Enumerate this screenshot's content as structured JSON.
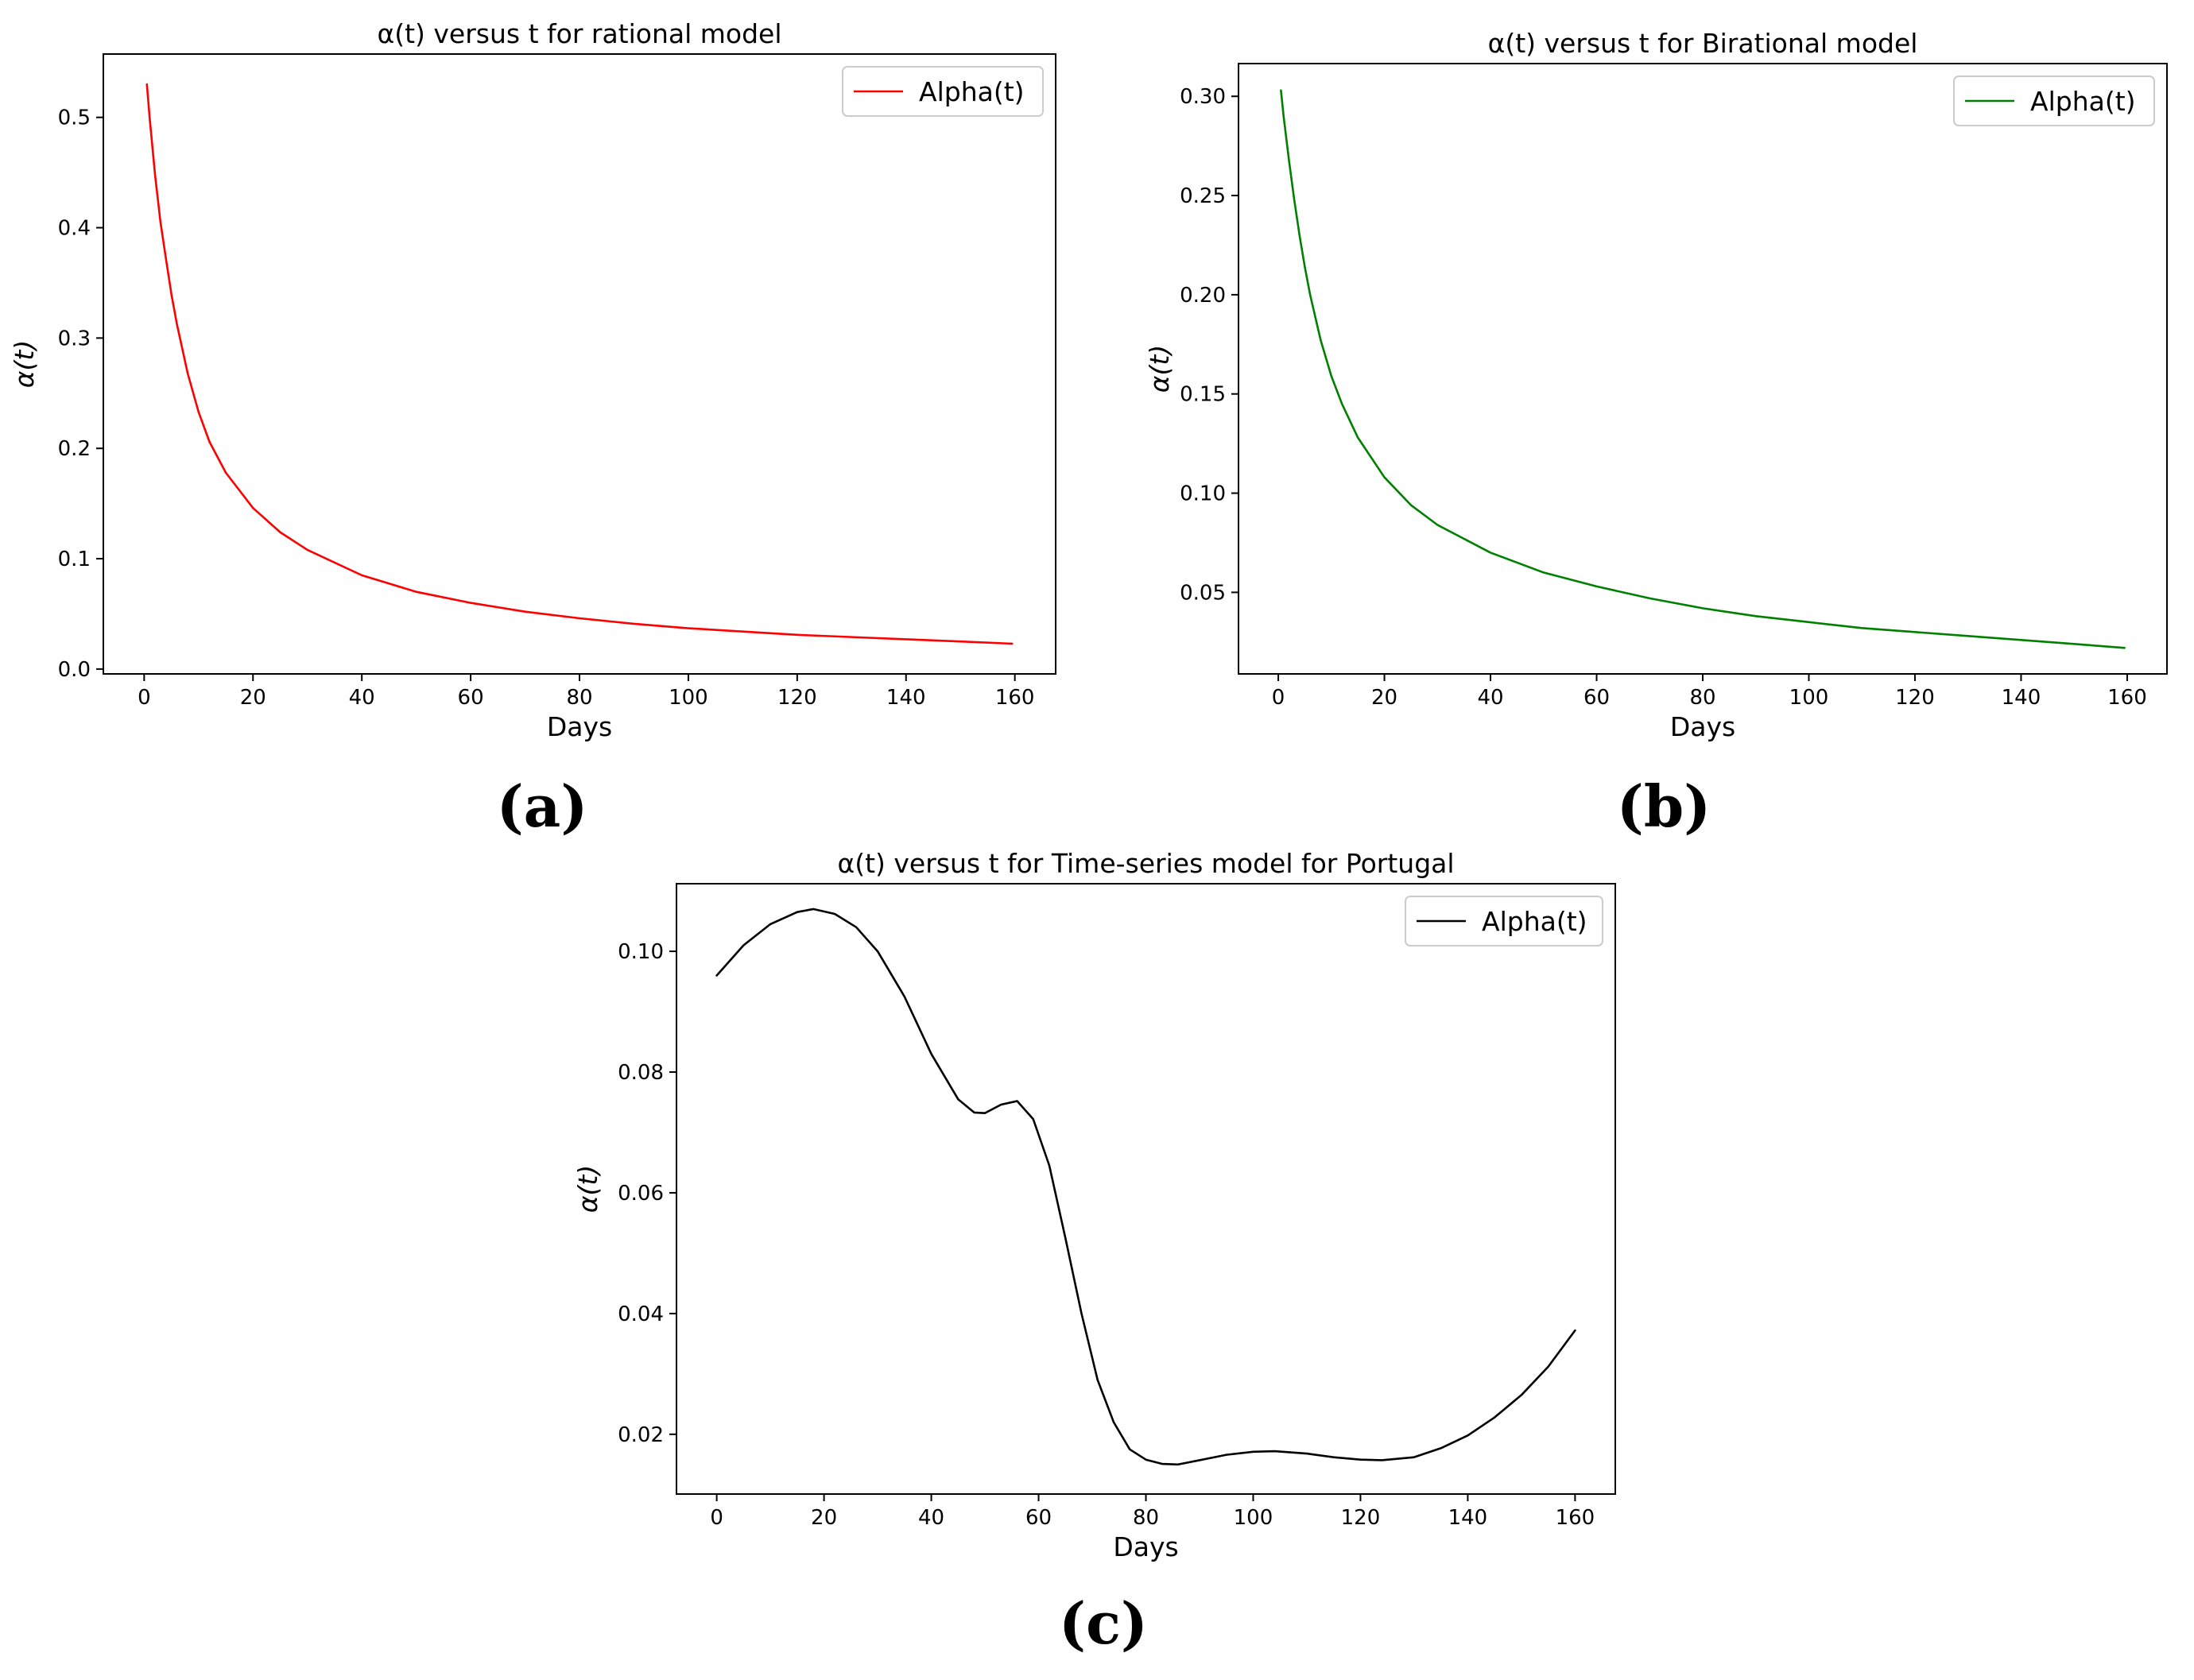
{
  "chart_data": [
    {
      "type": "line",
      "panel_label": "(a)",
      "title": "α(t) versus t for rational model",
      "xlabel": "Days",
      "ylabel": "α(t)",
      "xlim": [
        -7.5,
        167.5
      ],
      "ylim": [
        -0.0044,
        0.5574
      ],
      "xticks": [
        0,
        20,
        40,
        60,
        80,
        100,
        120,
        140,
        160
      ],
      "xtick_labels": [
        "0",
        "20",
        "40",
        "60",
        "80",
        "100",
        "120",
        "140",
        "160"
      ],
      "yticks": [
        0.0,
        0.1,
        0.2,
        0.3,
        0.4,
        0.5
      ],
      "ytick_labels": [
        "0.0",
        "0.1",
        "0.2",
        "0.3",
        "0.4",
        "0.5"
      ],
      "legend": "top-right",
      "grid": false,
      "series": [
        {
          "name": "Alpha(t)",
          "color": "#ff0000",
          "x": [
            0.5,
            1,
            2,
            3,
            4,
            5,
            6,
            8,
            10,
            12,
            15,
            20,
            25,
            30,
            40,
            50,
            60,
            70,
            80,
            90,
            100,
            110,
            120,
            130,
            140,
            150,
            159.5
          ],
          "y": [
            0.53,
            0.5,
            0.448,
            0.405,
            0.372,
            0.34,
            0.313,
            0.268,
            0.233,
            0.206,
            0.178,
            0.146,
            0.124,
            0.108,
            0.085,
            0.07,
            0.06,
            0.052,
            0.046,
            0.041,
            0.037,
            0.034,
            0.031,
            0.029,
            0.027,
            0.025,
            0.023
          ]
        }
      ]
    },
    {
      "type": "line",
      "panel_label": "(b)",
      "title": "α(t) versus t for Birational model",
      "xlabel": "Days",
      "ylabel": "α(t)",
      "xlim": [
        -7.5,
        167.5
      ],
      "ylim": [
        0.0089,
        0.3165
      ],
      "xticks": [
        0,
        20,
        40,
        60,
        80,
        100,
        120,
        140,
        160
      ],
      "xtick_labels": [
        "0",
        "20",
        "40",
        "60",
        "80",
        "100",
        "120",
        "140",
        "160"
      ],
      "yticks": [
        0.05,
        0.1,
        0.15,
        0.2,
        0.25,
        0.3
      ],
      "ytick_labels": [
        "0.05",
        "0.10",
        "0.15",
        "0.20",
        "0.25",
        "0.30"
      ],
      "legend": "top-right",
      "grid": false,
      "series": [
        {
          "name": "Alpha(t)",
          "color": "#008000",
          "x": [
            0.5,
            1,
            2,
            3,
            4,
            5,
            6,
            8,
            10,
            12,
            15,
            20,
            25,
            30,
            40,
            50,
            60,
            70,
            80,
            90,
            100,
            110,
            120,
            130,
            140,
            150,
            159.5
          ],
          "y": [
            0.303,
            0.29,
            0.268,
            0.248,
            0.23,
            0.214,
            0.2,
            0.177,
            0.159,
            0.145,
            0.128,
            0.108,
            0.094,
            0.084,
            0.07,
            0.06,
            0.053,
            0.047,
            0.042,
            0.038,
            0.035,
            0.032,
            0.03,
            0.028,
            0.026,
            0.024,
            0.022
          ]
        }
      ]
    },
    {
      "type": "line",
      "panel_label": "(c)",
      "title": "α(t) versus t for Time-series model for Portugal",
      "xlabel": "Days",
      "ylabel": "α(t)",
      "xlim": [
        -7.5,
        167.5
      ],
      "ylim": [
        0.0101,
        0.1112
      ],
      "xticks": [
        0,
        20,
        40,
        60,
        80,
        100,
        120,
        140,
        160
      ],
      "xtick_labels": [
        "0",
        "20",
        "40",
        "60",
        "80",
        "100",
        "120",
        "140",
        "160"
      ],
      "yticks": [
        0.02,
        0.04,
        0.06,
        0.08,
        0.1
      ],
      "ytick_labels": [
        "0.02",
        "0.04",
        "0.06",
        "0.08",
        "0.10"
      ],
      "legend": "top-right",
      "grid": false,
      "series": [
        {
          "name": "Alpha(t)",
          "color": "#000000",
          "x": [
            0,
            5,
            10,
            15,
            18,
            22,
            26,
            30,
            35,
            40,
            45,
            48,
            50,
            53,
            56,
            59,
            62,
            65,
            68,
            71,
            74,
            77,
            80,
            83,
            86,
            90,
            95,
            100,
            104,
            110,
            115,
            120,
            124,
            130,
            135,
            140,
            145,
            150,
            155,
            160
          ],
          "y": [
            0.096,
            0.101,
            0.1045,
            0.1065,
            0.107,
            0.1062,
            0.104,
            0.1,
            0.0925,
            0.083,
            0.0755,
            0.0733,
            0.0732,
            0.0746,
            0.0752,
            0.0722,
            0.0645,
            0.0525,
            0.04,
            0.029,
            0.022,
            0.0175,
            0.0158,
            0.0151,
            0.015,
            0.0157,
            0.0166,
            0.0171,
            0.0172,
            0.0168,
            0.0162,
            0.0158,
            0.0157,
            0.0162,
            0.0177,
            0.0198,
            0.0228,
            0.0265,
            0.0312,
            0.0372
          ]
        }
      ]
    }
  ]
}
